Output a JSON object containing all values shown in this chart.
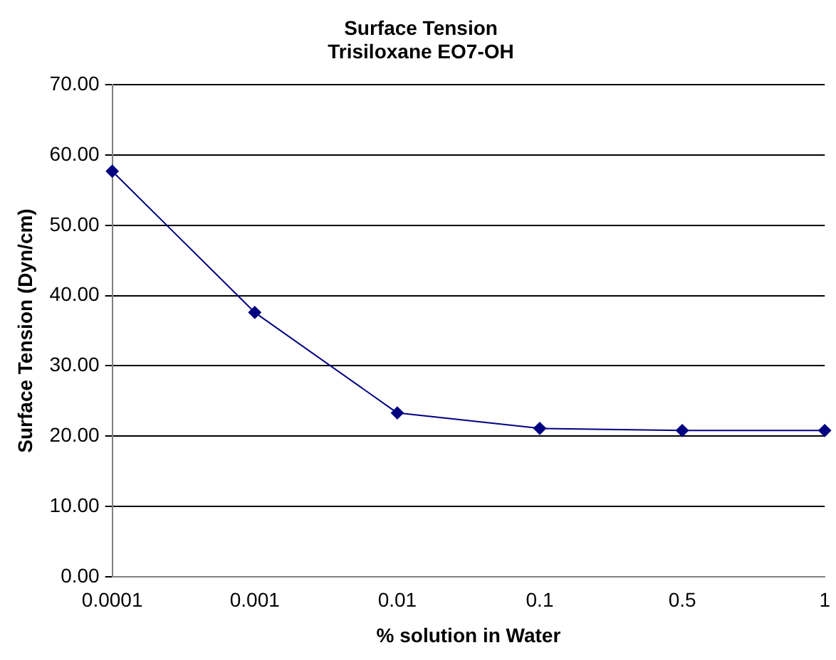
{
  "chart_data": {
    "type": "line",
    "title": "Surface Tension",
    "subtitle": "Trisiloxane EO7-OH",
    "xlabel": "% solution in Water",
    "ylabel": "Surface Tension (Dyn/cm)",
    "categories": [
      "0.0001",
      "0.001",
      "0.01",
      "0.1",
      "0.5",
      "1"
    ],
    "series": [
      {
        "color": "#000080",
        "values": [
          57.7,
          37.6,
          23.3,
          21.1,
          20.8,
          20.8
        ]
      }
    ],
    "ylim": [
      0,
      70
    ],
    "yticks": [
      {
        "value": 0,
        "label": "0.00"
      },
      {
        "value": 10,
        "label": "10.00"
      },
      {
        "value": 20,
        "label": "20.00"
      },
      {
        "value": 30,
        "label": "30.00"
      },
      {
        "value": 40,
        "label": "40.00"
      },
      {
        "value": 50,
        "label": "50.00"
      },
      {
        "value": 60,
        "label": "60.00"
      },
      {
        "value": 70,
        "label": "70.00"
      }
    ],
    "grid": "y",
    "legend": false,
    "marker": "diamond",
    "line_style": "solid"
  }
}
